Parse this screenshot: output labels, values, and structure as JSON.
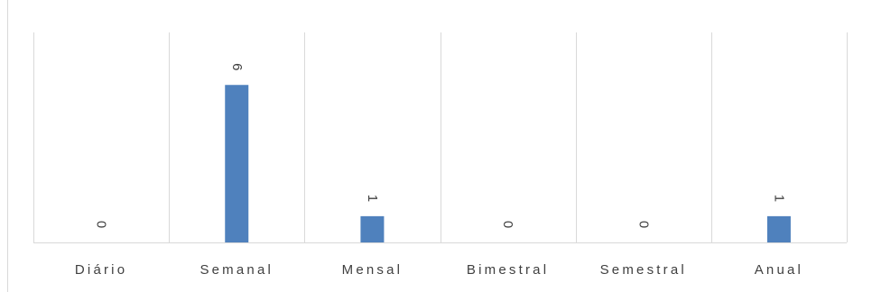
{
  "chart_data": {
    "type": "bar",
    "categories": [
      "Diário",
      "Semanal",
      "Mensal",
      "Bimestral",
      "Semestral",
      "Anual"
    ],
    "series": [
      {
        "values": [
          0,
          6,
          1,
          0,
          0,
          1
        ]
      }
    ],
    "title": "",
    "xlabel": "",
    "ylabel": "",
    "ylim": [
      0,
      8
    ],
    "grid": "vertical-category-separators",
    "legend": "none",
    "data_labels": "rotated-vertical",
    "bar_color": "#4f81bd",
    "gridline_color": "#d9d9d9",
    "text_color": "#404040"
  }
}
